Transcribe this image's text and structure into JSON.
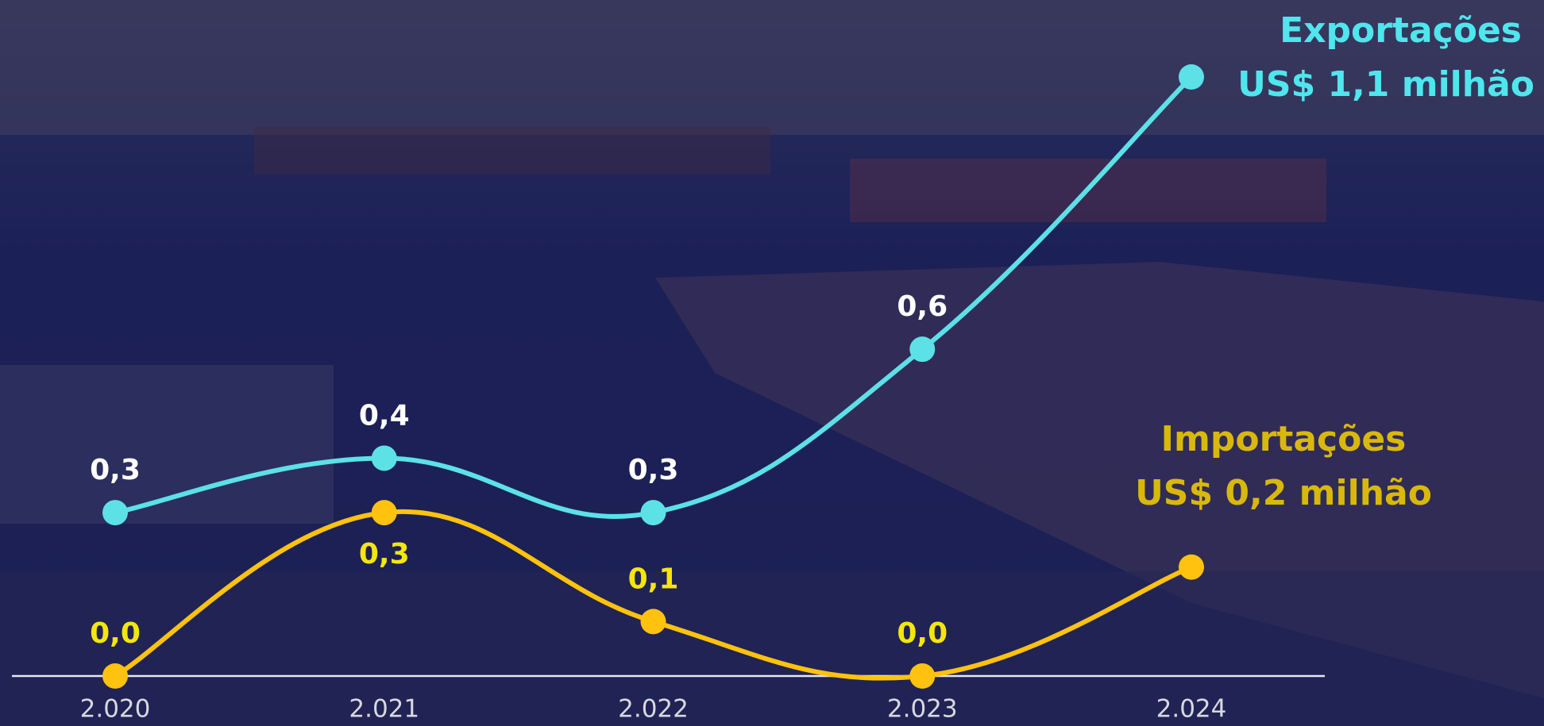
{
  "chart_data": {
    "type": "line",
    "categories": [
      "2.020",
      "2.021",
      "2.022",
      "2.023",
      "2.024"
    ],
    "series": [
      {
        "name": "Exportações",
        "end_label": "US$ 1,1 milhão",
        "color": "#5ce1e6",
        "values": [
          0.3,
          0.4,
          0.3,
          0.6,
          1.1
        ],
        "value_labels": [
          "0,3",
          "0,4",
          "0,3",
          "0,6",
          null
        ]
      },
      {
        "name": "Importações",
        "end_label": "US$ 0,2 milhão",
        "color": "#ffc20e",
        "values": [
          0.0,
          0.3,
          0.1,
          0.0,
          0.2
        ],
        "value_labels": [
          "0,0",
          "0,3",
          "0,1",
          "0,0",
          null
        ]
      }
    ],
    "ylim": [
      0,
      1.1
    ]
  }
}
